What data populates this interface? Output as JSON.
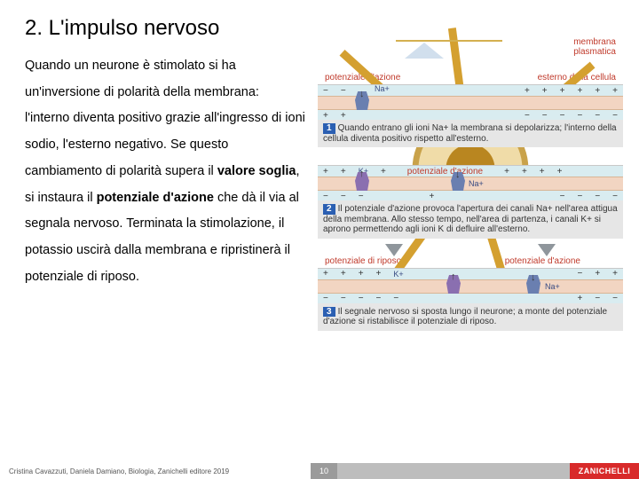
{
  "title": "2. L'impulso nervoso",
  "body_html": "Quando un neurone è stimolato si ha un'inversione di polarità della membrana: l'interno diventa positivo grazie all'ingresso di ioni sodio, l'esterno negativo.\nSe questo cambiamento di polarità supera il <b>valore soglia</b>, si instaura il <b>potenziale d'azione</b> che dà il via al segnala nervoso.\nTerminata la stimolazione, il potassio uscirà dalla membrana e ripristinerà il potenziale di riposo.",
  "footer_credit": "Cristina Cavazzuti, Daniela Damiano, Biologia, Zanichelli editore 2019",
  "page_number": "10",
  "brand": "ZANICHELLI",
  "neuron": {
    "membrana_label": "membrana\nplasmatica"
  },
  "diagram1": {
    "left_label": "potenziale d'azione",
    "right_label": "esterno della cellula",
    "ion": "Na+",
    "caption_num": "1",
    "caption": "Quando entrano gli ioni Na+ la membrana si depolarizza; l'interno della cellula diventa positivo rispetto all'esterno."
  },
  "diagram2": {
    "ion_k": "K+",
    "ion_na": "Na+",
    "center_label": "potenziale d'azione",
    "caption_num": "2",
    "caption": "Il potenziale d'azione provoca l'apertura dei canali Na+ nell'area attigua della membrana. Allo stesso tempo, nell'area di partenza, i canali K+ si aprono permettendo agli ioni K di defluire all'esterno."
  },
  "diagram3": {
    "left_label": "potenziale di riposo",
    "right_label": "potenziale d'azione",
    "ion_k": "K+",
    "ion_na": "Na+",
    "caption_num": "3",
    "caption": "Il segnale nervoso si sposta lungo il neurone; a monte del potenziale d'azione si ristabilisce il potenziale di riposo."
  },
  "colors": {
    "title": "#000000",
    "caption_bg": "#e6e6e6",
    "caption_badge": "#2b5fb2",
    "membrane_outer": "#d9ecf0",
    "membrane_lipid": "#f2d5c2",
    "label_red": "#c03a2b",
    "logo_bg": "#d82a2a"
  }
}
